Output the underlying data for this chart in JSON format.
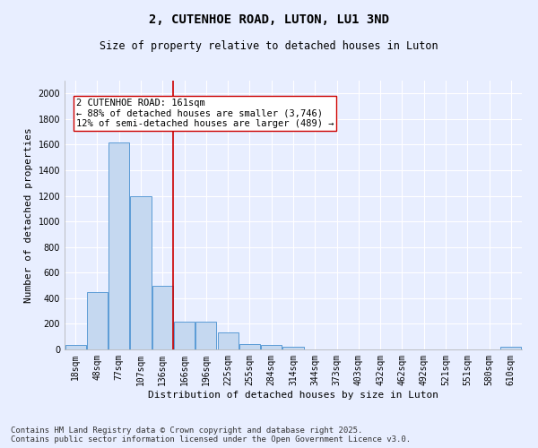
{
  "title1": "2, CUTENHOE ROAD, LUTON, LU1 3ND",
  "title2": "Size of property relative to detached houses in Luton",
  "xlabel": "Distribution of detached houses by size in Luton",
  "ylabel": "Number of detached properties",
  "categories": [
    "18sqm",
    "48sqm",
    "77sqm",
    "107sqm",
    "136sqm",
    "166sqm",
    "196sqm",
    "225sqm",
    "255sqm",
    "284sqm",
    "314sqm",
    "344sqm",
    "373sqm",
    "403sqm",
    "432sqm",
    "462sqm",
    "492sqm",
    "521sqm",
    "551sqm",
    "580sqm",
    "610sqm"
  ],
  "values": [
    35,
    450,
    1620,
    1200,
    500,
    220,
    220,
    130,
    45,
    35,
    20,
    0,
    0,
    0,
    0,
    0,
    0,
    0,
    0,
    0,
    20
  ],
  "bar_color": "#c5d8f0",
  "bar_edge_color": "#5b9bd5",
  "red_line_index": 5,
  "red_line_color": "#cc0000",
  "annotation_text": "2 CUTENHOE ROAD: 161sqm\n← 88% of detached houses are smaller (3,746)\n12% of semi-detached houses are larger (489) →",
  "annotation_box_color": "#ffffff",
  "annotation_box_edge": "#cc0000",
  "ylim": [
    0,
    2100
  ],
  "yticks": [
    0,
    200,
    400,
    600,
    800,
    1000,
    1200,
    1400,
    1600,
    1800,
    2000
  ],
  "bg_color": "#e8eeff",
  "footnote": "Contains HM Land Registry data © Crown copyright and database right 2025.\nContains public sector information licensed under the Open Government Licence v3.0.",
  "title1_fontsize": 10,
  "title2_fontsize": 8.5,
  "axis_label_fontsize": 8,
  "tick_fontsize": 7,
  "annotation_fontsize": 7.5,
  "footnote_fontsize": 6.5
}
